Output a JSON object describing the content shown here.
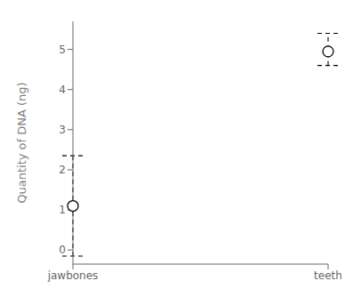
{
  "chart_data": {
    "type": "errorbar",
    "categories": [
      "jawbones",
      "teeth"
    ],
    "values": [
      1.1,
      4.95
    ],
    "upper_errors": [
      1.25,
      0.45
    ],
    "lower_errors": [
      1.25,
      0.35
    ],
    "ylabel": "Quantity of DNA (ng)",
    "ylim": [
      -0.35,
      5.7
    ],
    "yticks": [
      0,
      1,
      2,
      3,
      4,
      5
    ],
    "grid": false,
    "color": "black",
    "marker": "open_circle",
    "line_style": "dashed"
  }
}
